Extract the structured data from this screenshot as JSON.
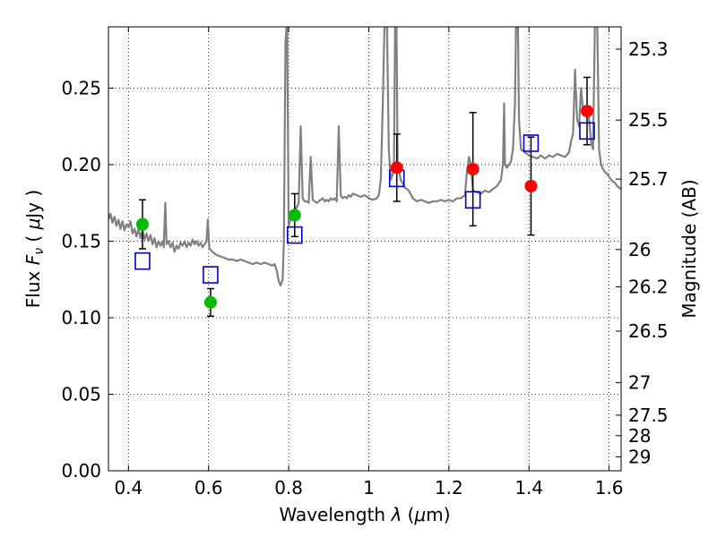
{
  "chart_data": {
    "type": "scatter",
    "title": "",
    "xlabel": "Wavelength  λ (μm)",
    "ylabel": "Flux  Fν  ( μJy )",
    "ylabel_right": "Magnitude (AB)",
    "xlim": [
      0.35,
      1.63
    ],
    "ylim": [
      0.0,
      0.29
    ],
    "grid": true,
    "x_ticks": [
      0.4,
      0.6,
      0.8,
      1.0,
      1.2,
      1.4,
      1.6
    ],
    "x_tick_labels": [
      "0.4",
      "0.6",
      "0.8",
      "1",
      "1.2",
      "1.4",
      "1.6"
    ],
    "y_ticks": [
      0.0,
      0.05,
      0.1,
      0.15,
      0.2,
      0.25
    ],
    "y_tick_labels": [
      "0.00",
      "0.05",
      "0.10",
      "0.15",
      "0.20",
      "0.25"
    ],
    "right_ticks": [
      {
        "label": "25.3",
        "mag": 25.3
      },
      {
        "label": "25.5",
        "mag": 25.5
      },
      {
        "label": "25.7",
        "mag": 25.7
      },
      {
        "label": "26",
        "mag": 26.0
      },
      {
        "label": "26.2",
        "mag": 26.2
      },
      {
        "label": "26.5",
        "mag": 26.5
      },
      {
        "label": "27",
        "mag": 27.0
      },
      {
        "label": "27.5",
        "mag": 27.5
      },
      {
        "label": "28",
        "mag": 28.0
      },
      {
        "label": "29",
        "mag": 29.0
      }
    ],
    "series": [
      {
        "name": "template-spectrum",
        "kind": "line",
        "color": "#808080",
        "points": [
          [
            0.35,
            0.164
          ],
          [
            0.355,
            0.168
          ],
          [
            0.36,
            0.162
          ],
          [
            0.365,
            0.166
          ],
          [
            0.37,
            0.16
          ],
          [
            0.375,
            0.164
          ],
          [
            0.38,
            0.158
          ],
          [
            0.385,
            0.163
          ],
          [
            0.39,
            0.157
          ],
          [
            0.395,
            0.161
          ],
          [
            0.4,
            0.159
          ],
          [
            0.405,
            0.163
          ],
          [
            0.41,
            0.155
          ],
          [
            0.415,
            0.158
          ],
          [
            0.42,
            0.153
          ],
          [
            0.425,
            0.158
          ],
          [
            0.43,
            0.152
          ],
          [
            0.435,
            0.157
          ],
          [
            0.44,
            0.151
          ],
          [
            0.445,
            0.155
          ],
          [
            0.45,
            0.15
          ],
          [
            0.455,
            0.154
          ],
          [
            0.46,
            0.148
          ],
          [
            0.465,
            0.152
          ],
          [
            0.47,
            0.146
          ],
          [
            0.475,
            0.15
          ],
          [
            0.48,
            0.147
          ],
          [
            0.485,
            0.15
          ],
          [
            0.488,
            0.146
          ],
          [
            0.492,
            0.175
          ],
          [
            0.495,
            0.148
          ],
          [
            0.5,
            0.15
          ],
          [
            0.505,
            0.146
          ],
          [
            0.51,
            0.149
          ],
          [
            0.515,
            0.143
          ],
          [
            0.52,
            0.147
          ],
          [
            0.525,
            0.145
          ],
          [
            0.53,
            0.149
          ],
          [
            0.535,
            0.147
          ],
          [
            0.54,
            0.15
          ],
          [
            0.545,
            0.146
          ],
          [
            0.55,
            0.149
          ],
          [
            0.555,
            0.147
          ],
          [
            0.56,
            0.151
          ],
          [
            0.565,
            0.148
          ],
          [
            0.57,
            0.15
          ],
          [
            0.575,
            0.147
          ],
          [
            0.58,
            0.149
          ],
          [
            0.585,
            0.146
          ],
          [
            0.59,
            0.148
          ],
          [
            0.595,
            0.15
          ],
          [
            0.598,
            0.164
          ],
          [
            0.602,
            0.145
          ],
          [
            0.61,
            0.143
          ],
          [
            0.62,
            0.141
          ],
          [
            0.63,
            0.14
          ],
          [
            0.64,
            0.139
          ],
          [
            0.65,
            0.138
          ],
          [
            0.66,
            0.138
          ],
          [
            0.67,
            0.137
          ],
          [
            0.68,
            0.138
          ],
          [
            0.69,
            0.137
          ],
          [
            0.7,
            0.136
          ],
          [
            0.71,
            0.135
          ],
          [
            0.72,
            0.136
          ],
          [
            0.73,
            0.135
          ],
          [
            0.74,
            0.136
          ],
          [
            0.75,
            0.135
          ],
          [
            0.76,
            0.134
          ],
          [
            0.765,
            0.135
          ],
          [
            0.77,
            0.131
          ],
          [
            0.775,
            0.124
          ],
          [
            0.78,
            0.121
          ],
          [
            0.785,
            0.125
          ],
          [
            0.788,
            0.15
          ],
          [
            0.792,
            0.28
          ],
          [
            0.796,
            0.295
          ],
          [
            0.8,
            0.16
          ],
          [
            0.805,
            0.165
          ],
          [
            0.81,
            0.169
          ],
          [
            0.815,
            0.17
          ],
          [
            0.82,
            0.172
          ],
          [
            0.825,
            0.175
          ],
          [
            0.83,
            0.225
          ],
          [
            0.835,
            0.178
          ],
          [
            0.84,
            0.176
          ],
          [
            0.845,
            0.176
          ],
          [
            0.85,
            0.175
          ],
          [
            0.855,
            0.205
          ],
          [
            0.86,
            0.177
          ],
          [
            0.865,
            0.176
          ],
          [
            0.87,
            0.175
          ],
          [
            0.875,
            0.176
          ],
          [
            0.88,
            0.177
          ],
          [
            0.885,
            0.178
          ],
          [
            0.89,
            0.176
          ],
          [
            0.895,
            0.177
          ],
          [
            0.9,
            0.176
          ],
          [
            0.905,
            0.178
          ],
          [
            0.91,
            0.177
          ],
          [
            0.915,
            0.178
          ],
          [
            0.92,
            0.176
          ],
          [
            0.925,
            0.225
          ],
          [
            0.93,
            0.18
          ],
          [
            0.935,
            0.178
          ],
          [
            0.94,
            0.179
          ],
          [
            0.945,
            0.178
          ],
          [
            0.95,
            0.18
          ],
          [
            0.955,
            0.179
          ],
          [
            0.96,
            0.181
          ],
          [
            0.97,
            0.18
          ],
          [
            0.98,
            0.179
          ],
          [
            0.99,
            0.18
          ],
          [
            1.0,
            0.178
          ],
          [
            1.01,
            0.177
          ],
          [
            1.02,
            0.178
          ],
          [
            1.025,
            0.18
          ],
          [
            1.03,
            0.19
          ],
          [
            1.035,
            0.24
          ],
          [
            1.04,
            0.3
          ],
          [
            1.045,
            0.3
          ],
          [
            1.05,
            0.21
          ],
          [
            1.055,
            0.19
          ],
          [
            1.06,
            0.194
          ],
          [
            1.063,
            0.202
          ],
          [
            1.066,
            0.3
          ],
          [
            1.069,
            0.3
          ],
          [
            1.072,
            0.2
          ],
          [
            1.08,
            0.19
          ],
          [
            1.09,
            0.185
          ],
          [
            1.1,
            0.183
          ],
          [
            1.11,
            0.178
          ],
          [
            1.12,
            0.176
          ],
          [
            1.13,
            0.177
          ],
          [
            1.14,
            0.176
          ],
          [
            1.15,
            0.175
          ],
          [
            1.16,
            0.176
          ],
          [
            1.17,
            0.176
          ],
          [
            1.18,
            0.177
          ],
          [
            1.19,
            0.176
          ],
          [
            1.2,
            0.177
          ],
          [
            1.21,
            0.176
          ],
          [
            1.22,
            0.178
          ],
          [
            1.23,
            0.178
          ],
          [
            1.24,
            0.18
          ],
          [
            1.245,
            0.195
          ],
          [
            1.25,
            0.205
          ],
          [
            1.255,
            0.2
          ],
          [
            1.26,
            0.183
          ],
          [
            1.27,
            0.182
          ],
          [
            1.28,
            0.181
          ],
          [
            1.29,
            0.183
          ],
          [
            1.3,
            0.182
          ],
          [
            1.31,
            0.184
          ],
          [
            1.32,
            0.186
          ],
          [
            1.33,
            0.19
          ],
          [
            1.335,
            0.2
          ],
          [
            1.338,
            0.24
          ],
          [
            1.34,
            0.2
          ],
          [
            1.345,
            0.198
          ],
          [
            1.35,
            0.2
          ],
          [
            1.355,
            0.202
          ],
          [
            1.36,
            0.21
          ],
          [
            1.365,
            0.24
          ],
          [
            1.368,
            0.3
          ],
          [
            1.372,
            0.3
          ],
          [
            1.375,
            0.23
          ],
          [
            1.38,
            0.21
          ],
          [
            1.39,
            0.208
          ],
          [
            1.4,
            0.206
          ],
          [
            1.41,
            0.205
          ],
          [
            1.42,
            0.204
          ],
          [
            1.43,
            0.206
          ],
          [
            1.44,
            0.204
          ],
          [
            1.45,
            0.206
          ],
          [
            1.46,
            0.205
          ],
          [
            1.47,
            0.207
          ],
          [
            1.48,
            0.206
          ],
          [
            1.49,
            0.205
          ],
          [
            1.5,
            0.208
          ],
          [
            1.505,
            0.215
          ],
          [
            1.51,
            0.22
          ],
          [
            1.515,
            0.262
          ],
          [
            1.52,
            0.23
          ],
          [
            1.525,
            0.225
          ],
          [
            1.53,
            0.25
          ],
          [
            1.535,
            0.235
          ],
          [
            1.54,
            0.232
          ],
          [
            1.545,
            0.238
          ],
          [
            1.55,
            0.23
          ],
          [
            1.555,
            0.215
          ],
          [
            1.56,
            0.21
          ],
          [
            1.565,
            0.3
          ],
          [
            1.57,
            0.3
          ],
          [
            1.575,
            0.21
          ],
          [
            1.58,
            0.2
          ],
          [
            1.585,
            0.197
          ],
          [
            1.59,
            0.195
          ],
          [
            1.595,
            0.194
          ],
          [
            1.6,
            0.192
          ],
          [
            1.605,
            0.19
          ],
          [
            1.61,
            0.189
          ],
          [
            1.615,
            0.188
          ],
          [
            1.62,
            0.186
          ],
          [
            1.625,
            0.185
          ],
          [
            1.63,
            0.184
          ]
        ]
      },
      {
        "name": "green-observed",
        "kind": "points",
        "color": "#00bb00",
        "x": [
          0.435,
          0.605,
          0.815
        ],
        "y": [
          0.161,
          0.11,
          0.167
        ],
        "err": [
          0.016,
          0.009,
          0.014
        ]
      },
      {
        "name": "red-observed",
        "kind": "points",
        "color": "#ff0000",
        "x": [
          1.07,
          1.26,
          1.405,
          1.545
        ],
        "y": [
          0.198,
          0.197,
          0.186,
          0.235
        ],
        "err": [
          0.022,
          0.037,
          0.032,
          0.022
        ]
      },
      {
        "name": "blue-model",
        "kind": "squares",
        "color": "#0000cc",
        "x": [
          0.435,
          0.605,
          0.815,
          1.07,
          1.26,
          1.405,
          1.545
        ],
        "y": [
          0.137,
          0.128,
          0.154,
          0.191,
          0.177,
          0.214,
          0.222
        ]
      }
    ]
  }
}
